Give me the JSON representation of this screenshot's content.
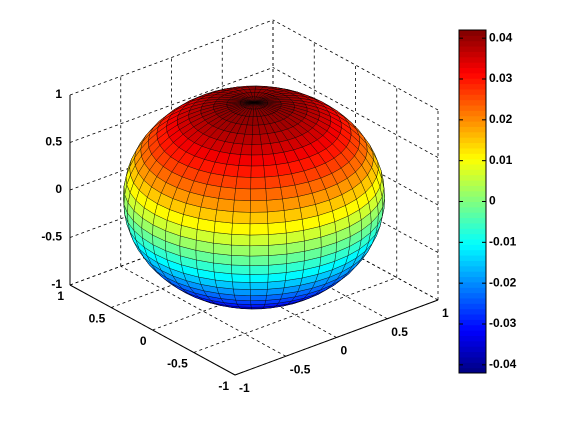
{
  "chart_data": {
    "type": "surface3d",
    "shape": "sphere",
    "colormap": "jet",
    "grid": true,
    "xlim": [
      -1,
      1
    ],
    "xticks": [
      -1,
      -0.5,
      0,
      0.5,
      1
    ],
    "ylim": [
      -1,
      1
    ],
    "yticks": [
      -1,
      -0.5,
      0,
      0.5,
      1
    ],
    "zlim": [
      -1,
      1
    ],
    "zticks": [
      -1,
      -0.5,
      0,
      0.5,
      1
    ],
    "colorbar": {
      "clim": [
        -0.042,
        0.042
      ],
      "ticks": [
        -0.04,
        -0.03,
        -0.02,
        -0.01,
        0,
        0.01,
        0.02,
        0.03,
        0.04
      ]
    }
  }
}
